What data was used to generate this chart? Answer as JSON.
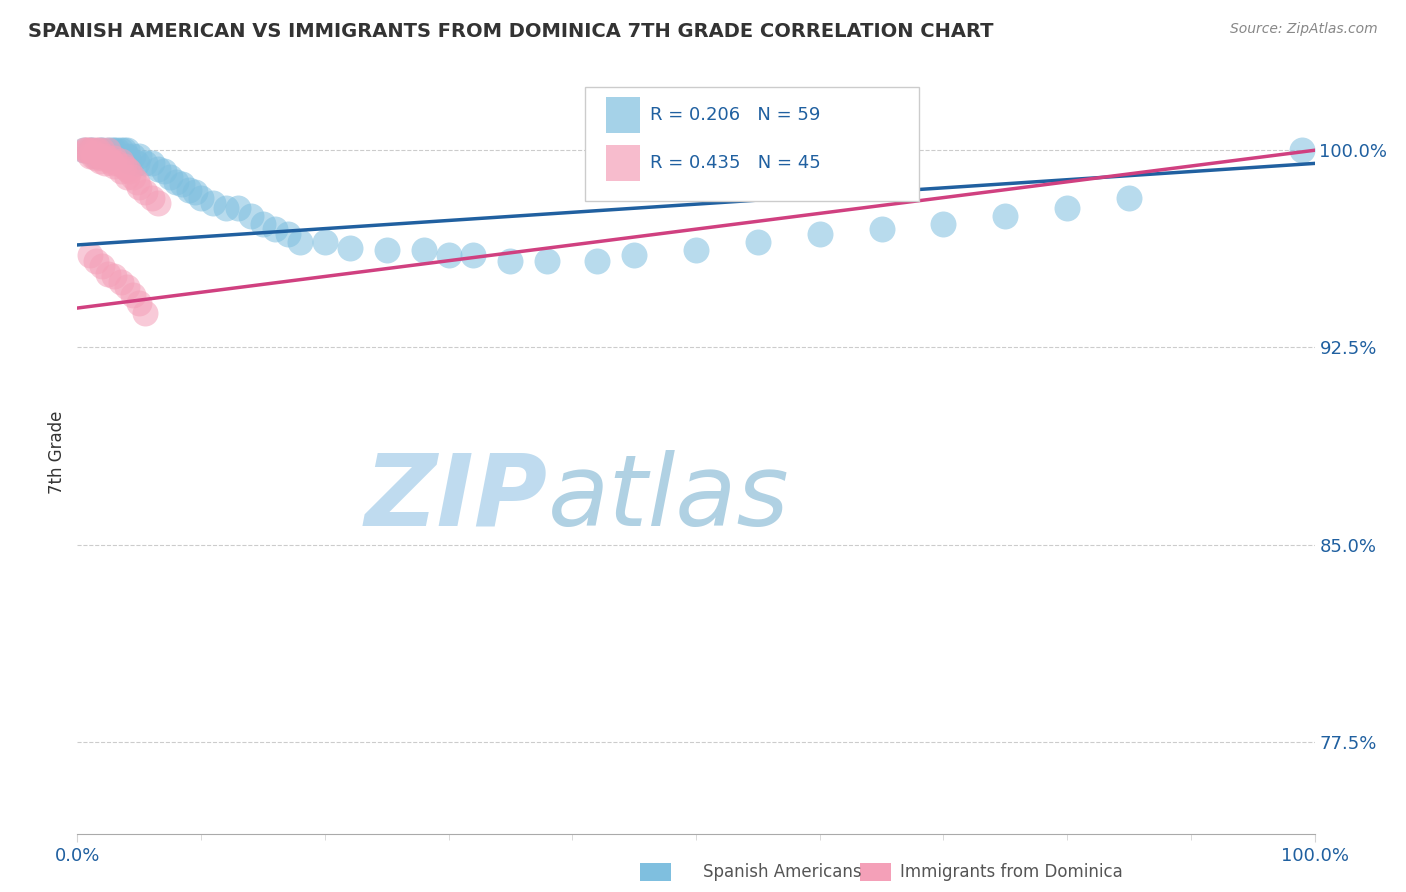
{
  "title": "SPANISH AMERICAN VS IMMIGRANTS FROM DOMINICA 7TH GRADE CORRELATION CHART",
  "source_text": "Source: ZipAtlas.com",
  "xlabel_bottom_left": "0.0%",
  "xlabel_bottom_right": "100.0%",
  "ylabel": "7th Grade",
  "ytick_labels": [
    "77.5%",
    "85.0%",
    "92.5%",
    "100.0%"
  ],
  "ytick_values": [
    0.775,
    0.85,
    0.925,
    1.0
  ],
  "xlim": [
    0.0,
    1.0
  ],
  "ylim": [
    0.74,
    1.03
  ],
  "legend_R1": "R = 0.206",
  "legend_N1": "N = 59",
  "legend_R2": "R = 0.435",
  "legend_N2": "N = 45",
  "color_blue": "#7fbfdf",
  "color_pink": "#f4a0b8",
  "color_trend_blue": "#2060a0",
  "color_trend_pink": "#d04080",
  "watermark_zip": "ZIP",
  "watermark_atlas": "atlas",
  "watermark_color_zip": "#c8dff0",
  "watermark_color_atlas": "#c0d8e8",
  "blue_x": [
    0.005,
    0.01,
    0.012,
    0.015,
    0.018,
    0.02,
    0.022,
    0.025,
    0.025,
    0.028,
    0.03,
    0.03,
    0.032,
    0.035,
    0.035,
    0.038,
    0.04,
    0.04,
    0.042,
    0.045,
    0.048,
    0.05,
    0.055,
    0.06,
    0.065,
    0.07,
    0.075,
    0.08,
    0.085,
    0.09,
    0.095,
    0.1,
    0.11,
    0.12,
    0.13,
    0.14,
    0.15,
    0.16,
    0.17,
    0.18,
    0.2,
    0.22,
    0.25,
    0.28,
    0.3,
    0.32,
    0.35,
    0.38,
    0.42,
    0.45,
    0.5,
    0.55,
    0.6,
    0.65,
    0.7,
    0.75,
    0.8,
    0.85,
    0.99
  ],
  "blue_y": [
    1.0,
    1.0,
    1.0,
    0.998,
    1.0,
    1.0,
    0.998,
    1.0,
    0.997,
    1.0,
    1.0,
    0.998,
    1.0,
    0.998,
    1.0,
    1.0,
    0.998,
    1.0,
    0.996,
    0.998,
    0.995,
    0.998,
    0.995,
    0.995,
    0.993,
    0.992,
    0.99,
    0.988,
    0.987,
    0.985,
    0.984,
    0.982,
    0.98,
    0.978,
    0.978,
    0.975,
    0.972,
    0.97,
    0.968,
    0.965,
    0.965,
    0.963,
    0.962,
    0.962,
    0.96,
    0.96,
    0.958,
    0.958,
    0.958,
    0.96,
    0.962,
    0.965,
    0.968,
    0.97,
    0.972,
    0.975,
    0.978,
    0.982,
    1.0
  ],
  "pink_x": [
    0.005,
    0.007,
    0.008,
    0.01,
    0.01,
    0.012,
    0.013,
    0.015,
    0.015,
    0.017,
    0.018,
    0.018,
    0.02,
    0.02,
    0.022,
    0.022,
    0.025,
    0.025,
    0.027,
    0.028,
    0.03,
    0.03,
    0.032,
    0.035,
    0.035,
    0.038,
    0.04,
    0.04,
    0.042,
    0.045,
    0.048,
    0.05,
    0.055,
    0.06,
    0.065,
    0.01,
    0.015,
    0.02,
    0.025,
    0.03,
    0.035,
    0.04,
    0.045,
    0.05,
    0.055
  ],
  "pink_y": [
    1.0,
    1.0,
    1.0,
    1.0,
    0.998,
    1.0,
    0.998,
    1.0,
    0.997,
    1.0,
    0.998,
    0.996,
    1.0,
    0.997,
    0.998,
    0.995,
    1.0,
    0.997,
    0.996,
    0.995,
    0.997,
    0.994,
    0.995,
    0.996,
    0.992,
    0.994,
    0.993,
    0.99,
    0.992,
    0.99,
    0.988,
    0.986,
    0.984,
    0.982,
    0.98,
    0.96,
    0.958,
    0.956,
    0.953,
    0.952,
    0.95,
    0.948,
    0.945,
    0.942,
    0.938
  ]
}
